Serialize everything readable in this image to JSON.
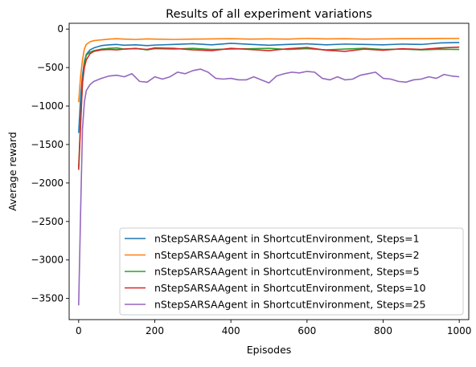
{
  "chart_data": {
    "type": "line",
    "title": "Results of all experiment variations",
    "xlabel": "Episodes",
    "ylabel": "Average reward",
    "xlim": [
      -25,
      1025
    ],
    "ylim": [
      -3775,
      75
    ],
    "xticks": [
      0,
      200,
      400,
      600,
      800,
      1000
    ],
    "xtick_labels": [
      "0",
      "200",
      "400",
      "600",
      "800",
      "1000"
    ],
    "yticks": [
      0,
      -500,
      -1000,
      -1500,
      -2000,
      -2500,
      -3000,
      -3500
    ],
    "ytick_labels": [
      "0",
      "−500",
      "−1000",
      "−1500",
      "−2000",
      "−2500",
      "−3000",
      "−3500"
    ],
    "grid": false,
    "legend_position": "bottom-right",
    "series": [
      {
        "name": "nStepSARSAAgent in ShortcutEnvironment, Steps=1",
        "color": "#1f77b4",
        "x": [
          0,
          5,
          10,
          15,
          20,
          30,
          40,
          60,
          80,
          100,
          120,
          150,
          180,
          200,
          250,
          300,
          350,
          400,
          450,
          500,
          550,
          600,
          650,
          700,
          750,
          800,
          850,
          900,
          950,
          1000
        ],
        "y": [
          -1350,
          -900,
          -600,
          -420,
          -330,
          -270,
          -245,
          -215,
          -205,
          -200,
          -210,
          -205,
          -215,
          -208,
          -200,
          -190,
          -205,
          -185,
          -198,
          -210,
          -200,
          -192,
          -205,
          -195,
          -200,
          -205,
          -195,
          -200,
          -180,
          -175
        ]
      },
      {
        "name": "nStepSARSAAgent in ShortcutEnvironment, Steps=2",
        "color": "#ff7f0e",
        "x": [
          0,
          5,
          10,
          15,
          20,
          30,
          40,
          60,
          80,
          100,
          120,
          150,
          180,
          200,
          250,
          300,
          350,
          400,
          450,
          500,
          550,
          600,
          650,
          700,
          750,
          800,
          850,
          900,
          950,
          1000
        ],
        "y": [
          -950,
          -620,
          -400,
          -260,
          -200,
          -165,
          -150,
          -140,
          -130,
          -125,
          -130,
          -135,
          -128,
          -130,
          -135,
          -130,
          -128,
          -125,
          -130,
          -128,
          -130,
          -122,
          -128,
          -125,
          -130,
          -128,
          -125,
          -125,
          -123,
          -122
        ]
      },
      {
        "name": "nStepSARSAAgent in ShortcutEnvironment, Steps=5",
        "color": "#2ca02c",
        "x": [
          0,
          5,
          10,
          15,
          20,
          30,
          40,
          60,
          80,
          100,
          120,
          150,
          180,
          200,
          250,
          300,
          350,
          400,
          450,
          500,
          550,
          600,
          650,
          700,
          750,
          800,
          850,
          900,
          950,
          1000
        ],
        "y": [
          -1800,
          -1200,
          -700,
          -450,
          -340,
          -300,
          -280,
          -260,
          -250,
          -245,
          -260,
          -250,
          -270,
          -255,
          -260,
          -250,
          -265,
          -260,
          -255,
          -250,
          -265,
          -255,
          -270,
          -260,
          -250,
          -265,
          -260,
          -270,
          -262,
          -265
        ]
      },
      {
        "name": "nStepSARSAAgent in ShortcutEnvironment, Steps=10",
        "color": "#d62728",
        "x": [
          0,
          5,
          10,
          15,
          20,
          30,
          40,
          60,
          80,
          100,
          120,
          150,
          180,
          200,
          250,
          300,
          350,
          400,
          450,
          500,
          550,
          600,
          650,
          700,
          750,
          800,
          850,
          900,
          950,
          1000
        ],
        "y": [
          -1830,
          -1250,
          -700,
          -500,
          -400,
          -320,
          -290,
          -270,
          -265,
          -270,
          -260,
          -255,
          -265,
          -245,
          -250,
          -270,
          -280,
          -250,
          -265,
          -280,
          -255,
          -240,
          -275,
          -290,
          -260,
          -275,
          -255,
          -265,
          -245,
          -235
        ]
      },
      {
        "name": "nStepSARSAAgent in ShortcutEnvironment, Steps=25",
        "color": "#9467bd",
        "x": [
          0,
          5,
          10,
          15,
          20,
          30,
          40,
          60,
          80,
          100,
          120,
          140,
          160,
          180,
          200,
          220,
          240,
          260,
          280,
          300,
          320,
          340,
          360,
          380,
          400,
          420,
          440,
          460,
          480,
          500,
          520,
          540,
          560,
          580,
          600,
          620,
          640,
          660,
          680,
          700,
          720,
          740,
          760,
          780,
          800,
          820,
          840,
          860,
          880,
          900,
          920,
          940,
          960,
          980,
          1000
        ],
        "y": [
          -3590,
          -2400,
          -1300,
          -950,
          -800,
          -720,
          -680,
          -640,
          -610,
          -600,
          -620,
          -580,
          -680,
          -690,
          -620,
          -650,
          -620,
          -560,
          -580,
          -540,
          -520,
          -560,
          -640,
          -650,
          -640,
          -660,
          -660,
          -620,
          -660,
          -700,
          -610,
          -580,
          -560,
          -570,
          -550,
          -560,
          -640,
          -660,
          -620,
          -660,
          -650,
          -600,
          -580,
          -560,
          -640,
          -650,
          -680,
          -690,
          -660,
          -650,
          -620,
          -640,
          -590,
          -610,
          -620
        ]
      }
    ]
  }
}
